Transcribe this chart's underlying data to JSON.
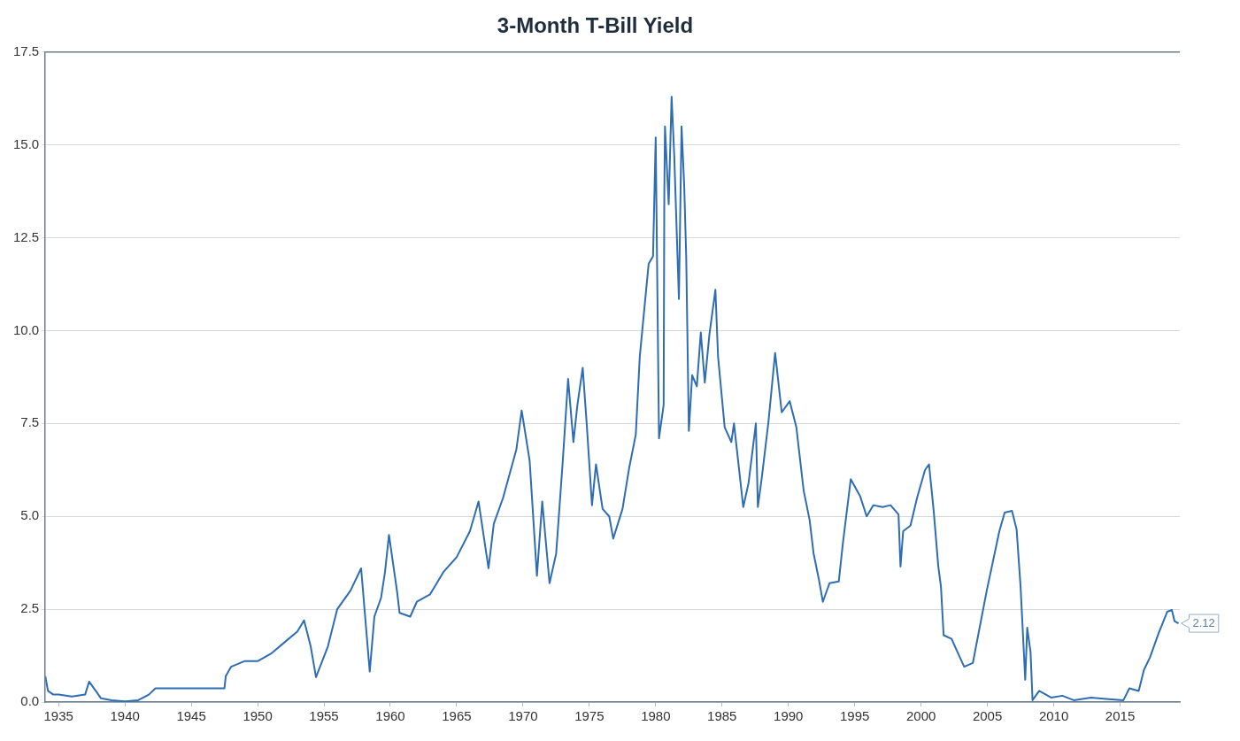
{
  "chart_data": {
    "type": "line",
    "title": "3-Month T-Bill Yield",
    "xlim": [
      1934,
      2019.5
    ],
    "xticks": [
      1935,
      1940,
      1945,
      1950,
      1955,
      1960,
      1965,
      1970,
      1975,
      1980,
      1985,
      1990,
      1995,
      2000,
      2005,
      2010,
      2015
    ],
    "ylim": [
      0,
      17.5
    ],
    "yticks": [
      {
        "value": 0,
        "label": "0.0"
      },
      2.5,
      {
        "value": 5,
        "label": "5.0"
      },
      7.5,
      {
        "value": 10,
        "label": "10.0"
      },
      12.5,
      {
        "value": 15,
        "label": "15.0"
      },
      17.5
    ],
    "grid": "y",
    "line_style": "solid",
    "annotations": [
      {
        "text": "2.12",
        "x": 2019.4,
        "y": 2.12
      }
    ],
    "series": [
      {
        "color": "#2e6db4",
        "x": [
          1934.0,
          1934.2,
          1934.6,
          1935,
          1936,
          1937.0,
          1937.3,
          1937.8,
          1938.2,
          1939,
          1940,
          1941,
          1941.8,
          1942.3,
          1947.5,
          1947.6,
          1948.0,
          1949,
          1950,
          1951,
          1952,
          1953,
          1953.5,
          1954,
          1954.4,
          1955.3,
          1956,
          1957,
          1957.8,
          1958.45,
          1958.8,
          1959.3,
          1959.6,
          1959.9,
          1960.5,
          1960.7,
          1961.5,
          1962,
          1963,
          1964,
          1965,
          1966,
          1966.65,
          1967.4,
          1967.8,
          1968.5,
          1969.5,
          1969.9,
          1970.5,
          1971.05,
          1971.45,
          1972.0,
          1972.5,
          1973.0,
          1973.4,
          1973.8,
          1974.1,
          1974.5,
          1974.8,
          1975.2,
          1975.5,
          1976.0,
          1976.5,
          1976.8,
          1977.5,
          1978.0,
          1978.5,
          1978.8,
          1979.47,
          1979.8,
          1980.0,
          1980.25,
          1980.6,
          1980.65,
          1980.7,
          1980.98,
          1981.2,
          1981.4,
          1981.75,
          1981.95,
          1982.15,
          1982.3,
          1982.5,
          1982.75,
          1983.1,
          1983.4,
          1983.7,
          1984.05,
          1984.5,
          1984.7,
          1985.2,
          1985.7,
          1985.9,
          1986.6,
          1987.0,
          1987.55,
          1987.7,
          1988.0,
          1988.5,
          1989.0,
          1989.5,
          1990.1,
          1990.6,
          1991.15,
          1991.6,
          1991.9,
          1992.3,
          1992.6,
          1993.1,
          1993.8,
          1994.1,
          1994.7,
          1995.4,
          1995.9,
          1996.4,
          1997.1,
          1997.7,
          1998.3,
          1998.45,
          1998.65,
          1999.2,
          1999.7,
          2000.3,
          2000.6,
          2000.95,
          2001.3,
          2001.5,
          2001.7,
          2002.3,
          2002.8,
          2003.25,
          2003.9,
          2004.95,
          2005.9,
          2006.3,
          2006.85,
          2007.2,
          2007.5,
          2007.85,
          2008.0,
          2008.25,
          2008.4,
          2008.9,
          2009.8,
          2010.65,
          2011.5,
          2012.8,
          2014.15,
          2015.25,
          2015.7,
          2016.4,
          2016.8,
          2017.25,
          2017.9,
          2018.55,
          2018.9,
          2019.1,
          2019.4
        ],
        "values": [
          0.7,
          0.3,
          0.2,
          0.2,
          0.15,
          0.2,
          0.55,
          0.3,
          0.1,
          0.05,
          0.02,
          0.05,
          0.2,
          0.37,
          0.37,
          0.7,
          0.95,
          1.1,
          1.1,
          1.3,
          1.6,
          1.9,
          2.2,
          1.5,
          0.67,
          1.5,
          2.5,
          3.0,
          3.6,
          0.82,
          2.3,
          2.8,
          3.5,
          4.5,
          3.0,
          2.4,
          2.3,
          2.7,
          2.9,
          3.5,
          3.9,
          4.6,
          5.4,
          3.6,
          4.8,
          5.5,
          6.8,
          7.85,
          6.5,
          3.4,
          5.4,
          3.2,
          4.0,
          6.5,
          8.7,
          7.0,
          8.0,
          9.0,
          7.5,
          5.3,
          6.4,
          5.2,
          5.0,
          4.4,
          5.2,
          6.3,
          7.2,
          9.3,
          11.8,
          12.0,
          15.2,
          7.1,
          8.0,
          13.7,
          15.5,
          13.4,
          16.3,
          14.7,
          10.85,
          15.5,
          13.9,
          12.0,
          7.3,
          8.8,
          8.5,
          9.95,
          8.6,
          9.9,
          11.1,
          9.3,
          7.4,
          7.0,
          7.5,
          5.25,
          5.9,
          7.5,
          5.25,
          6.05,
          7.55,
          9.4,
          7.8,
          8.1,
          7.4,
          5.7,
          4.9,
          4.0,
          3.3,
          2.7,
          3.2,
          3.25,
          4.25,
          6.0,
          5.55,
          5.0,
          5.3,
          5.25,
          5.3,
          5.05,
          3.65,
          4.6,
          4.75,
          5.5,
          6.25,
          6.4,
          5.15,
          3.65,
          3.1,
          1.8,
          1.7,
          1.3,
          0.95,
          1.05,
          3.0,
          4.6,
          5.1,
          5.15,
          4.65,
          3.1,
          0.6,
          2.0,
          1.35,
          0.05,
          0.3,
          0.12,
          0.17,
          0.05,
          0.12,
          0.08,
          0.05,
          0.37,
          0.3,
          0.87,
          1.2,
          1.85,
          2.43,
          2.48,
          2.18,
          2.12
        ]
      }
    ]
  }
}
